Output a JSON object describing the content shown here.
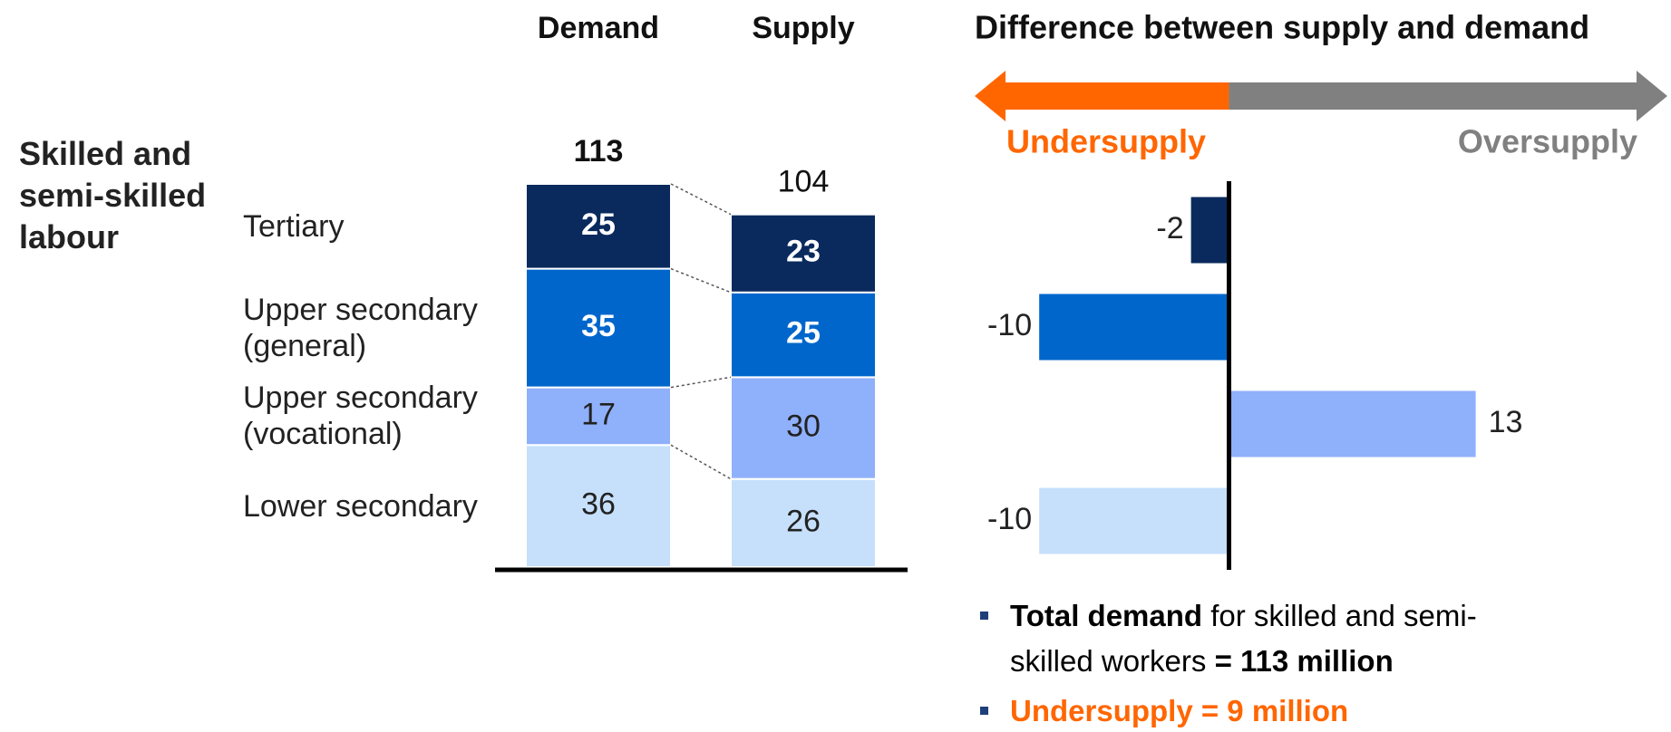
{
  "chart_data": [
    {
      "type": "stacked_bar",
      "row_label": "Skilled and semi-skilled labour",
      "categories": [
        "Demand",
        "Supply"
      ],
      "totals": [
        113,
        104
      ],
      "ylim": [
        0,
        113
      ],
      "series": [
        {
          "name": "Lower secondary",
          "color": "#c6e0fb",
          "text_color": "#222222",
          "values": [
            36,
            26
          ]
        },
        {
          "name": "Upper secondary (vocational)",
          "color": "#8fb0fb",
          "text_color": "#222222",
          "values": [
            17,
            30
          ]
        },
        {
          "name": "Upper secondary (general)",
          "color": "#0066cc",
          "text_color": "#ffffff",
          "values": [
            35,
            25
          ]
        },
        {
          "name": "Tertiary",
          "color": "#0a2a5e",
          "text_color": "#ffffff",
          "values": [
            25,
            23
          ]
        }
      ]
    },
    {
      "type": "hbar",
      "title": "Difference between supply and demand",
      "categories": [
        "Tertiary",
        "Upper secondary (general)",
        "Upper secondary (vocational)",
        "Lower secondary"
      ],
      "values": [
        -2,
        -10,
        13,
        -10
      ],
      "colors": [
        "#0a2a5e",
        "#0066cc",
        "#8fb0fb",
        "#c6e0fb"
      ],
      "xlim": [
        -13.4,
        23.1
      ],
      "negative_label": "Undersupply",
      "negative_color": "#ff6600",
      "positive_label": "Oversupply",
      "positive_color": "#808080",
      "notes": [
        {
          "color": "#000000",
          "parts": [
            {
              "text": "Total demand",
              "bold": true
            },
            {
              "text": " for skilled and semi-skilled workers ",
              "bold": false
            },
            {
              "text": "= 113 million",
              "bold": true
            }
          ]
        },
        {
          "color": "#ff6600",
          "parts": [
            {
              "text": "Undersupply = 9 million",
              "bold": true
            }
          ]
        }
      ]
    }
  ]
}
